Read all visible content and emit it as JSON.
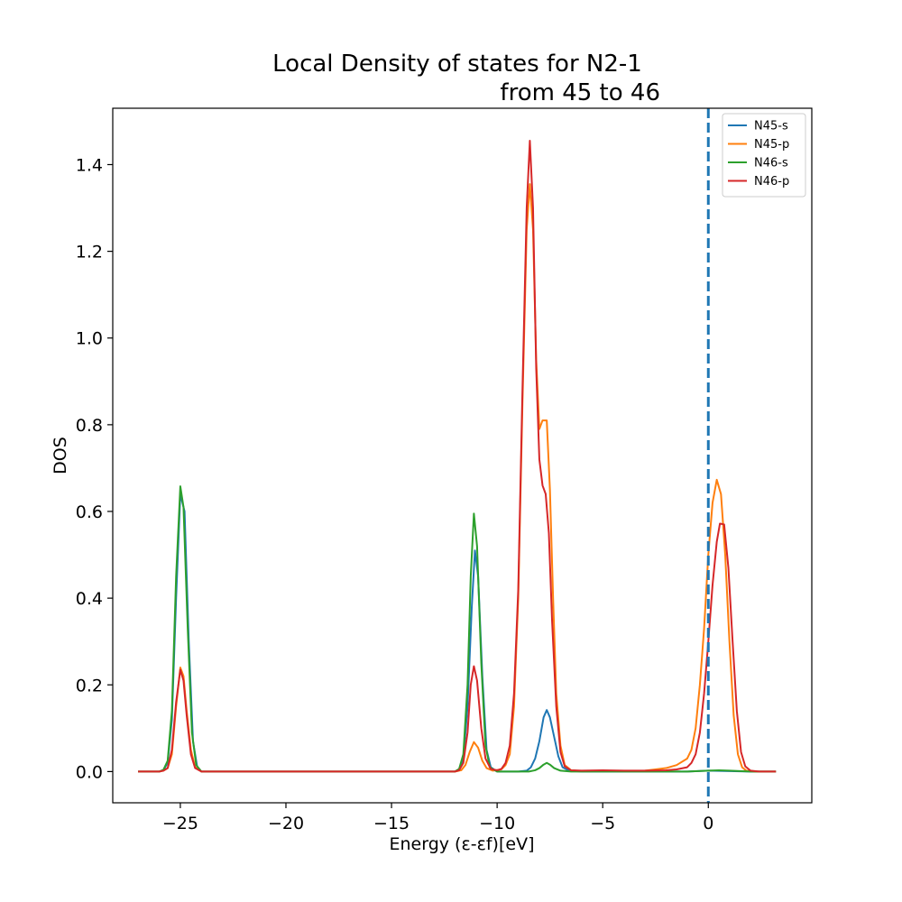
{
  "chart_data": {
    "type": "line",
    "title_line1": "Local Density of states for N2-1",
    "title_line2": "from 45 to 46",
    "xlabel": "Energy (ε-εf)[eV]",
    "ylabel": "DOS",
    "xlim": [
      -28.2,
      4.9
    ],
    "ylim": [
      -0.072,
      1.53
    ],
    "x_ticks": [
      -25,
      -20,
      -15,
      -10,
      -5,
      0
    ],
    "x_tick_labels": [
      "−25",
      "−20",
      "−15",
      "−10",
      "−5",
      "0"
    ],
    "y_ticks": [
      0.0,
      0.2,
      0.4,
      0.6,
      0.8,
      1.0,
      1.2,
      1.4
    ],
    "y_tick_labels": [
      "0.0",
      "0.2",
      "0.4",
      "0.6",
      "0.8",
      "1.0",
      "1.2",
      "1.4"
    ],
    "grid": false,
    "legend_position": "top-right",
    "fermi_line": {
      "x": 0,
      "color": "#1f77b4",
      "style": "dashed"
    },
    "series": [
      {
        "name": "N45-s",
        "color": "#1f77b4",
        "points": [
          [
            -27.0,
            0
          ],
          [
            -26.0,
            0
          ],
          [
            -25.8,
            0.003
          ],
          [
            -25.6,
            0.02
          ],
          [
            -25.4,
            0.12
          ],
          [
            -25.2,
            0.4
          ],
          [
            -25.0,
            0.64
          ],
          [
            -24.8,
            0.6
          ],
          [
            -24.6,
            0.3
          ],
          [
            -24.4,
            0.07
          ],
          [
            -24.2,
            0.01
          ],
          [
            -24.0,
            0
          ],
          [
            -12.0,
            0
          ],
          [
            -11.8,
            0.005
          ],
          [
            -11.6,
            0.03
          ],
          [
            -11.4,
            0.15
          ],
          [
            -11.2,
            0.38
          ],
          [
            -11.05,
            0.51
          ],
          [
            -10.9,
            0.45
          ],
          [
            -10.7,
            0.22
          ],
          [
            -10.5,
            0.05
          ],
          [
            -10.3,
            0.01
          ],
          [
            -10.0,
            0
          ],
          [
            -9.0,
            0
          ],
          [
            -8.6,
            0.002
          ],
          [
            -8.4,
            0.01
          ],
          [
            -8.2,
            0.03
          ],
          [
            -8.0,
            0.07
          ],
          [
            -7.8,
            0.125
          ],
          [
            -7.65,
            0.142
          ],
          [
            -7.5,
            0.125
          ],
          [
            -7.3,
            0.08
          ],
          [
            -7.1,
            0.035
          ],
          [
            -6.9,
            0.01
          ],
          [
            -6.6,
            0.002
          ],
          [
            -6.0,
            0
          ],
          [
            -1.0,
            0
          ],
          [
            0.0,
            0.002
          ],
          [
            1.0,
            0.001
          ],
          [
            2.0,
            0
          ],
          [
            3.2,
            0
          ]
        ]
      },
      {
        "name": "N45-p",
        "color": "#ff7f0e",
        "points": [
          [
            -27.0,
            0
          ],
          [
            -26.0,
            0
          ],
          [
            -25.8,
            0.002
          ],
          [
            -25.6,
            0.008
          ],
          [
            -25.4,
            0.04
          ],
          [
            -25.2,
            0.15
          ],
          [
            -25.0,
            0.24
          ],
          [
            -24.85,
            0.22
          ],
          [
            -24.7,
            0.14
          ],
          [
            -24.5,
            0.05
          ],
          [
            -24.3,
            0.01
          ],
          [
            -24.0,
            0
          ],
          [
            -12.0,
            0
          ],
          [
            -11.7,
            0.003
          ],
          [
            -11.5,
            0.015
          ],
          [
            -11.3,
            0.045
          ],
          [
            -11.1,
            0.068
          ],
          [
            -10.9,
            0.055
          ],
          [
            -10.7,
            0.025
          ],
          [
            -10.5,
            0.008
          ],
          [
            -10.2,
            0.002
          ],
          [
            -9.8,
            0.005
          ],
          [
            -9.6,
            0.015
          ],
          [
            -9.4,
            0.04
          ],
          [
            -9.2,
            0.15
          ],
          [
            -9.0,
            0.4
          ],
          [
            -8.8,
            0.85
          ],
          [
            -8.6,
            1.25
          ],
          [
            -8.45,
            1.355
          ],
          [
            -8.3,
            1.25
          ],
          [
            -8.15,
            0.95
          ],
          [
            -8.0,
            0.79
          ],
          [
            -7.85,
            0.81
          ],
          [
            -7.65,
            0.81
          ],
          [
            -7.5,
            0.65
          ],
          [
            -7.35,
            0.4
          ],
          [
            -7.2,
            0.18
          ],
          [
            -7.0,
            0.06
          ],
          [
            -6.8,
            0.015
          ],
          [
            -6.5,
            0.003
          ],
          [
            -6.0,
            0.001
          ],
          [
            -5.0,
            0.002
          ],
          [
            -4.0,
            0.001
          ],
          [
            -3.0,
            0.002
          ],
          [
            -2.5,
            0.005
          ],
          [
            -2.0,
            0.008
          ],
          [
            -1.5,
            0.015
          ],
          [
            -1.0,
            0.03
          ],
          [
            -0.8,
            0.05
          ],
          [
            -0.6,
            0.1
          ],
          [
            -0.4,
            0.2
          ],
          [
            -0.2,
            0.33
          ],
          [
            0.0,
            0.5
          ],
          [
            0.2,
            0.62
          ],
          [
            0.4,
            0.673
          ],
          [
            0.6,
            0.64
          ],
          [
            0.8,
            0.5
          ],
          [
            1.0,
            0.3
          ],
          [
            1.2,
            0.13
          ],
          [
            1.4,
            0.04
          ],
          [
            1.6,
            0.01
          ],
          [
            1.8,
            0.002
          ],
          [
            2.2,
            0
          ],
          [
            3.2,
            0
          ]
        ]
      },
      {
        "name": "N46-s",
        "color": "#2ca02c",
        "points": [
          [
            -27.0,
            0
          ],
          [
            -26.0,
            0
          ],
          [
            -25.8,
            0.004
          ],
          [
            -25.6,
            0.025
          ],
          [
            -25.4,
            0.14
          ],
          [
            -25.2,
            0.45
          ],
          [
            -25.0,
            0.658
          ],
          [
            -24.85,
            0.61
          ],
          [
            -24.65,
            0.33
          ],
          [
            -24.45,
            0.09
          ],
          [
            -24.25,
            0.015
          ],
          [
            -24.0,
            0
          ],
          [
            -12.0,
            0
          ],
          [
            -11.8,
            0.006
          ],
          [
            -11.6,
            0.04
          ],
          [
            -11.4,
            0.2
          ],
          [
            -11.25,
            0.45
          ],
          [
            -11.1,
            0.595
          ],
          [
            -10.95,
            0.52
          ],
          [
            -10.75,
            0.25
          ],
          [
            -10.55,
            0.06
          ],
          [
            -10.35,
            0.01
          ],
          [
            -10.0,
            0
          ],
          [
            -8.5,
            0
          ],
          [
            -8.2,
            0.003
          ],
          [
            -8.0,
            0.008
          ],
          [
            -7.8,
            0.016
          ],
          [
            -7.65,
            0.02
          ],
          [
            -7.5,
            0.016
          ],
          [
            -7.3,
            0.008
          ],
          [
            -7.0,
            0.002
          ],
          [
            -6.5,
            0
          ],
          [
            -1.0,
            0
          ],
          [
            -0.5,
            0.001
          ],
          [
            0.0,
            0.002
          ],
          [
            0.5,
            0.003
          ],
          [
            1.0,
            0.002
          ],
          [
            1.5,
            0.001
          ],
          [
            2.0,
            0
          ],
          [
            3.2,
            0
          ]
        ]
      },
      {
        "name": "N46-p",
        "color": "#d62728",
        "points": [
          [
            -27.0,
            0
          ],
          [
            -26.0,
            0
          ],
          [
            -25.8,
            0.002
          ],
          [
            -25.6,
            0.008
          ],
          [
            -25.4,
            0.05
          ],
          [
            -25.2,
            0.16
          ],
          [
            -25.0,
            0.235
          ],
          [
            -24.85,
            0.21
          ],
          [
            -24.7,
            0.13
          ],
          [
            -24.5,
            0.04
          ],
          [
            -24.3,
            0.008
          ],
          [
            -24.0,
            0
          ],
          [
            -12.0,
            0
          ],
          [
            -11.8,
            0.003
          ],
          [
            -11.6,
            0.02
          ],
          [
            -11.4,
            0.09
          ],
          [
            -11.25,
            0.2
          ],
          [
            -11.1,
            0.243
          ],
          [
            -10.95,
            0.21
          ],
          [
            -10.75,
            0.1
          ],
          [
            -10.55,
            0.03
          ],
          [
            -10.3,
            0.006
          ],
          [
            -10.0,
            0.003
          ],
          [
            -9.8,
            0.006
          ],
          [
            -9.6,
            0.02
          ],
          [
            -9.4,
            0.06
          ],
          [
            -9.2,
            0.18
          ],
          [
            -9.0,
            0.42
          ],
          [
            -8.8,
            0.88
          ],
          [
            -8.6,
            1.3
          ],
          [
            -8.45,
            1.455
          ],
          [
            -8.3,
            1.3
          ],
          [
            -8.15,
            0.93
          ],
          [
            -8.0,
            0.72
          ],
          [
            -7.85,
            0.66
          ],
          [
            -7.7,
            0.64
          ],
          [
            -7.55,
            0.55
          ],
          [
            -7.4,
            0.35
          ],
          [
            -7.2,
            0.15
          ],
          [
            -7.0,
            0.045
          ],
          [
            -6.8,
            0.012
          ],
          [
            -6.5,
            0.003
          ],
          [
            -6.0,
            0.002
          ],
          [
            -5.0,
            0.003
          ],
          [
            -4.0,
            0.002
          ],
          [
            -3.0,
            0.002
          ],
          [
            -2.0,
            0.003
          ],
          [
            -1.5,
            0.005
          ],
          [
            -1.0,
            0.01
          ],
          [
            -0.8,
            0.02
          ],
          [
            -0.6,
            0.04
          ],
          [
            -0.4,
            0.09
          ],
          [
            -0.2,
            0.18
          ],
          [
            0.0,
            0.3
          ],
          [
            0.2,
            0.43
          ],
          [
            0.4,
            0.53
          ],
          [
            0.55,
            0.572
          ],
          [
            0.75,
            0.57
          ],
          [
            0.95,
            0.47
          ],
          [
            1.15,
            0.3
          ],
          [
            1.35,
            0.14
          ],
          [
            1.55,
            0.045
          ],
          [
            1.75,
            0.012
          ],
          [
            2.0,
            0.002
          ],
          [
            2.4,
            0
          ],
          [
            3.2,
            0
          ]
        ]
      }
    ]
  }
}
